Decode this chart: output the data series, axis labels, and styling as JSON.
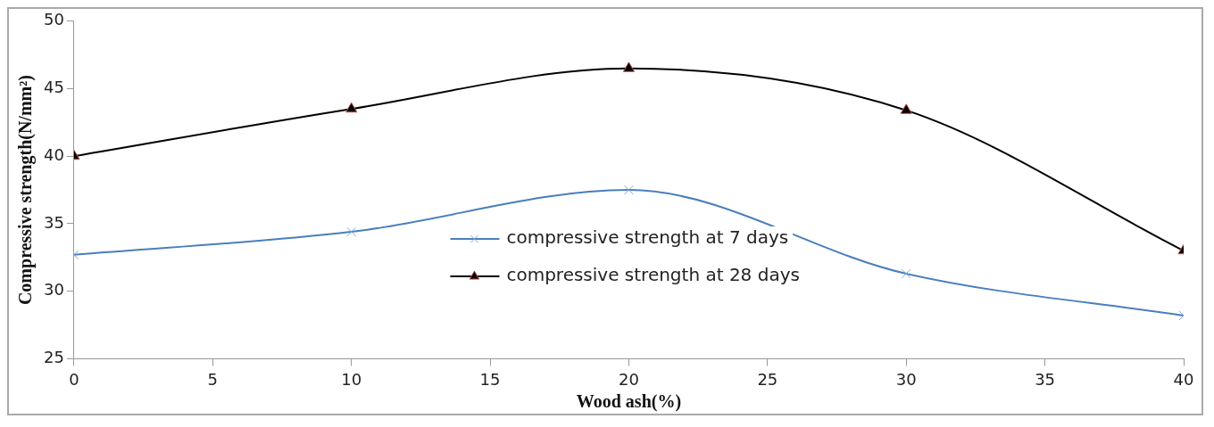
{
  "chart_data": {
    "type": "line",
    "xlabel": "Wood ash(%)",
    "ylabel": "Compressive strength(N/mm²)",
    "x": [
      0,
      10,
      20,
      30,
      40
    ],
    "xlim": [
      0,
      40
    ],
    "xticks": [
      0,
      5,
      10,
      15,
      20,
      25,
      30,
      35,
      40
    ],
    "ylim": [
      25,
      50
    ],
    "yticks": [
      25,
      30,
      35,
      40,
      45,
      50
    ],
    "grid": false,
    "legend": "center",
    "series": [
      {
        "name": "compressive strength at 7 days",
        "color": "#4a7ebb",
        "marker": "cross",
        "values": [
          32.7,
          34.4,
          37.5,
          31.3,
          28.2
        ]
      },
      {
        "name": "compressive strength at 28 days",
        "color": "#000000",
        "marker": "triangle",
        "values": [
          40.0,
          43.5,
          46.5,
          43.4,
          33.0
        ]
      }
    ]
  }
}
